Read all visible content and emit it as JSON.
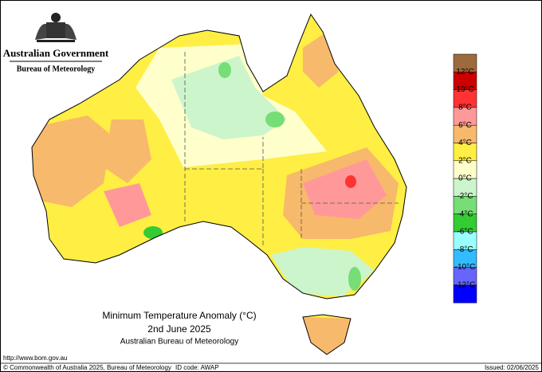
{
  "header": {
    "government": "Australian Government",
    "bureau": "Bureau of Meteorology"
  },
  "title": {
    "line1": "Minimum Temperature Anomaly (°C)",
    "line2": "2nd June 2025",
    "line3": "Australian Bureau of Meteorology"
  },
  "legend": {
    "labels": [
      "12°C",
      "10°C",
      "8°C",
      "6°C",
      "4°C",
      "2°C",
      "0°C",
      "-2°C",
      "-4°C",
      "-6°C",
      "-8°C",
      "-10°C",
      "-12°C"
    ],
    "colors": [
      "#9c6a3c",
      "#cc0000",
      "#ff3333",
      "#ff9999",
      "#f7b96b",
      "#ffee44",
      "#ffffcc",
      "#ccf5cc",
      "#77dd77",
      "#33cc33",
      "#99ffff",
      "#33bbff",
      "#6666ff",
      "#0000ff"
    ]
  },
  "footer": {
    "url": "http://www.bom.gov.au",
    "copyright": "© Commonwealth of Australia 2025, Bureau of Meteorology",
    "id_code": "ID code: AWAP",
    "issued": "Issued: 02/06/2025"
  }
}
